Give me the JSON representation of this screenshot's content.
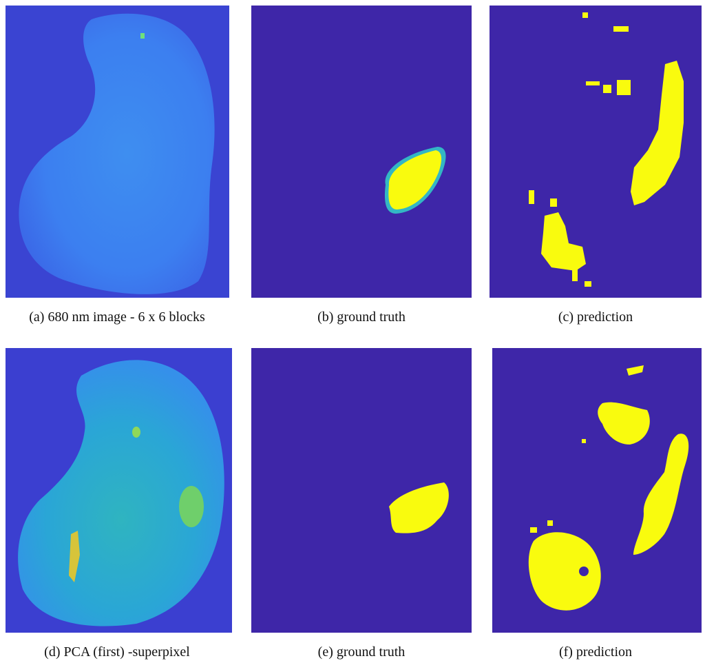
{
  "figure": {
    "panels": [
      {
        "caption": "(a) 680 nm image - 6 x 6 blocks"
      },
      {
        "caption": "(b) ground truth"
      },
      {
        "caption": "(c) prediction"
      },
      {
        "caption": "(d) PCA (first) -superpixel"
      },
      {
        "caption": "(e) ground truth"
      },
      {
        "caption": "(f) prediction"
      }
    ]
  }
}
